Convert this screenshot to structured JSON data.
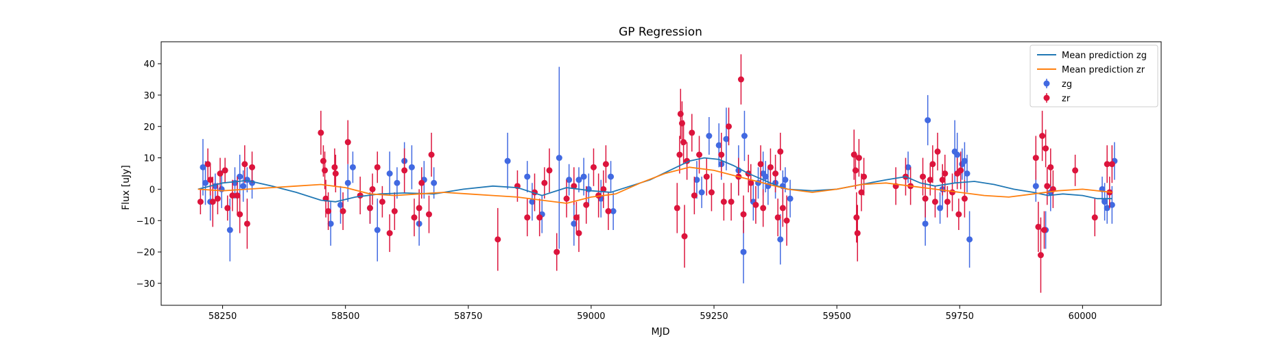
{
  "chart_data": {
    "type": "scatter",
    "title": "GP Regression",
    "xlabel": "MJD",
    "ylabel": "Flux [uJy]",
    "xlim": [
      58125,
      60160
    ],
    "ylim": [
      -37,
      47
    ],
    "x_ticks": [
      58250,
      58500,
      58750,
      59000,
      59250,
      59500,
      59750,
      60000
    ],
    "y_ticks": [
      -30,
      -20,
      -10,
      0,
      10,
      20,
      30,
      40
    ],
    "grid": false,
    "legend_position": "top-right",
    "series": [
      {
        "name": "Mean prediction zg",
        "kind": "line",
        "color": "#1f77b4",
        "x": [
          58200,
          58250,
          58300,
          58350,
          58400,
          58450,
          58480,
          58520,
          58570,
          58620,
          58680,
          58740,
          58800,
          58850,
          58900,
          58950,
          59000,
          59040,
          59080,
          59120,
          59160,
          59200,
          59230,
          59260,
          59290,
          59320,
          59350,
          59380,
          59400,
          59450,
          59500,
          59550,
          59600,
          59640,
          59670,
          59700,
          59740,
          59780,
          59820,
          59860,
          59900,
          59930,
          59960,
          60000,
          60030,
          60060
        ],
        "y": [
          0,
          2,
          2.8,
          1,
          -1,
          -3.5,
          -4,
          -2.5,
          -1.5,
          -1.2,
          -1.5,
          0,
          1,
          0.5,
          -2,
          0.5,
          -0.5,
          -1,
          1,
          3,
          6,
          9,
          10,
          9.5,
          7.5,
          5,
          3,
          1,
          0,
          -0.5,
          0,
          1.5,
          3,
          4,
          2,
          1,
          2,
          2.5,
          1.5,
          0,
          -1,
          -2,
          -1.5,
          -2,
          -3,
          -3
        ]
      },
      {
        "name": "Mean prediction zr",
        "kind": "line",
        "color": "#ff7f0e",
        "x": [
          58200,
          58250,
          58300,
          58350,
          58400,
          58450,
          58500,
          58550,
          58600,
          58650,
          58700,
          58750,
          58800,
          58850,
          58900,
          58950,
          59000,
          59050,
          59100,
          59150,
          59200,
          59250,
          59300,
          59350,
          59400,
          59450,
          59500,
          59550,
          59600,
          59650,
          59700,
          59750,
          59800,
          59850,
          59900,
          59950,
          60000,
          60060
        ],
        "y": [
          0,
          -0.5,
          0,
          0.5,
          1,
          1.5,
          0.5,
          -1.5,
          -2,
          -1.5,
          -1,
          -1.5,
          -2,
          -2.5,
          -3.5,
          -4.5,
          -2.5,
          -1.5,
          2,
          5,
          7,
          6,
          4,
          2,
          0,
          -1,
          0,
          1.5,
          2,
          1,
          0,
          -1,
          -2,
          -2.5,
          -1.5,
          -0.5,
          0,
          -1
        ]
      },
      {
        "name": "zg",
        "kind": "errorbar",
        "color": "#4169e1",
        "points": [
          [
            58210,
            7,
            9
          ],
          [
            58215,
            2,
            7
          ],
          [
            58225,
            -4,
            6
          ],
          [
            58235,
            1,
            4
          ],
          [
            58248,
            0,
            6
          ],
          [
            58265,
            -13,
            10
          ],
          [
            58275,
            2,
            5
          ],
          [
            58285,
            4,
            7
          ],
          [
            58292,
            1,
            5
          ],
          [
            58300,
            3,
            4
          ],
          [
            58310,
            2,
            5
          ],
          [
            58470,
            -11,
            7
          ],
          [
            58490,
            -5,
            6
          ],
          [
            58505,
            2,
            6
          ],
          [
            58515,
            7,
            5
          ],
          [
            58550,
            -6,
            5
          ],
          [
            58565,
            -13,
            10
          ],
          [
            58590,
            5,
            7
          ],
          [
            58605,
            2,
            5
          ],
          [
            58620,
            9,
            6
          ],
          [
            58635,
            7,
            7
          ],
          [
            58650,
            -11,
            7
          ],
          [
            58660,
            3,
            6
          ],
          [
            58680,
            2,
            5
          ],
          [
            58830,
            9,
            9
          ],
          [
            58870,
            4,
            5
          ],
          [
            58880,
            -4,
            6
          ],
          [
            58900,
            -8,
            6
          ],
          [
            58935,
            10,
            29
          ],
          [
            58955,
            3,
            5
          ],
          [
            58965,
            -11,
            7
          ],
          [
            58975,
            3,
            4
          ],
          [
            58985,
            4,
            6
          ],
          [
            58995,
            0,
            5
          ],
          [
            59020,
            -3,
            6
          ],
          [
            59040,
            4,
            5
          ],
          [
            59045,
            -7,
            6
          ],
          [
            59215,
            3,
            6
          ],
          [
            59225,
            -1,
            5
          ],
          [
            59240,
            17,
            6
          ],
          [
            59260,
            14,
            7
          ],
          [
            59265,
            8,
            5
          ],
          [
            59275,
            16,
            10
          ],
          [
            59300,
            6,
            8
          ],
          [
            59310,
            -20,
            10
          ],
          [
            59312,
            17,
            8
          ],
          [
            59330,
            -4,
            6
          ],
          [
            59340,
            2,
            5
          ],
          [
            59350,
            5,
            7
          ],
          [
            59355,
            4,
            5
          ],
          [
            59360,
            1,
            6
          ],
          [
            59375,
            2,
            5
          ],
          [
            59385,
            -16,
            8
          ],
          [
            59390,
            1,
            5
          ],
          [
            59395,
            3,
            4
          ],
          [
            59405,
            -3,
            6
          ],
          [
            59645,
            7,
            5
          ],
          [
            59680,
            -11,
            7
          ],
          [
            59685,
            22,
            8
          ],
          [
            59710,
            -6,
            5
          ],
          [
            59715,
            0,
            6
          ],
          [
            59740,
            12,
            10
          ],
          [
            59745,
            11,
            7
          ],
          [
            59755,
            8,
            5
          ],
          [
            59760,
            9,
            6
          ],
          [
            59765,
            5,
            6
          ],
          [
            59770,
            -16,
            9
          ],
          [
            59905,
            1,
            5
          ],
          [
            59925,
            -13,
            6
          ],
          [
            59935,
            -1,
            6
          ],
          [
            60040,
            0,
            4
          ],
          [
            60045,
            -4,
            6
          ],
          [
            60050,
            -6,
            5
          ],
          [
            60060,
            -5,
            6
          ],
          [
            60065,
            9,
            6
          ]
        ]
      },
      {
        "name": "zr",
        "kind": "errorbar",
        "color": "#dc143c",
        "points": [
          [
            58205,
            -4,
            4
          ],
          [
            58220,
            8,
            5
          ],
          [
            58225,
            3,
            5
          ],
          [
            58230,
            -4,
            8
          ],
          [
            58240,
            -3,
            5
          ],
          [
            58245,
            5,
            5
          ],
          [
            58255,
            6,
            4
          ],
          [
            58260,
            -6,
            4
          ],
          [
            58270,
            -2,
            5
          ],
          [
            58280,
            -2,
            6
          ],
          [
            58285,
            -8,
            6
          ],
          [
            58295,
            8,
            6
          ],
          [
            58300,
            -11,
            8
          ],
          [
            58310,
            7,
            5
          ],
          [
            58450,
            18,
            7
          ],
          [
            58455,
            9,
            5
          ],
          [
            58458,
            6,
            6
          ],
          [
            58460,
            -3,
            6
          ],
          [
            58465,
            -7,
            6
          ],
          [
            58478,
            7,
            6
          ],
          [
            58480,
            5,
            6
          ],
          [
            58495,
            -7,
            6
          ],
          [
            58505,
            15,
            7
          ],
          [
            58530,
            -2,
            6
          ],
          [
            58550,
            -6,
            5
          ],
          [
            58555,
            0,
            5
          ],
          [
            58565,
            7,
            5
          ],
          [
            58575,
            -4,
            5
          ],
          [
            58590,
            -14,
            6
          ],
          [
            58600,
            -7,
            6
          ],
          [
            58620,
            6,
            7
          ],
          [
            58640,
            -9,
            6
          ],
          [
            58650,
            -6,
            6
          ],
          [
            58655,
            2,
            5
          ],
          [
            58670,
            -8,
            6
          ],
          [
            58675,
            11,
            7
          ],
          [
            58810,
            -16,
            10
          ],
          [
            58850,
            1,
            5
          ],
          [
            58870,
            -9,
            6
          ],
          [
            58885,
            -1,
            6
          ],
          [
            58895,
            -9,
            6
          ],
          [
            58905,
            2,
            5
          ],
          [
            58915,
            6,
            7
          ],
          [
            58930,
            -20,
            6
          ],
          [
            58950,
            -3,
            6
          ],
          [
            58965,
            1,
            6
          ],
          [
            58970,
            -9,
            5
          ],
          [
            58975,
            -14,
            6
          ],
          [
            58990,
            -5,
            6
          ],
          [
            59005,
            7,
            6
          ],
          [
            59015,
            -2,
            7
          ],
          [
            59025,
            0,
            6
          ],
          [
            59030,
            8,
            6
          ],
          [
            59035,
            -7,
            6
          ],
          [
            59175,
            -6,
            8
          ],
          [
            59180,
            11,
            6
          ],
          [
            59182,
            24,
            8
          ],
          [
            59185,
            21,
            7
          ],
          [
            59188,
            15,
            7
          ],
          [
            59190,
            -15,
            10
          ],
          [
            59195,
            9,
            6
          ],
          [
            59205,
            18,
            6
          ],
          [
            59210,
            -2,
            6
          ],
          [
            59220,
            11,
            6
          ],
          [
            59235,
            4,
            6
          ],
          [
            59245,
            -1,
            6
          ],
          [
            59265,
            11,
            7
          ],
          [
            59270,
            -4,
            6
          ],
          [
            59280,
            20,
            6
          ],
          [
            59285,
            -4,
            6
          ],
          [
            59300,
            4,
            6
          ],
          [
            59305,
            35,
            8
          ],
          [
            59310,
            -8,
            6
          ],
          [
            59320,
            5,
            6
          ],
          [
            59325,
            2,
            6
          ],
          [
            59335,
            -5,
            6
          ],
          [
            59345,
            8,
            6
          ],
          [
            59350,
            -6,
            6
          ],
          [
            59365,
            7,
            6
          ],
          [
            59375,
            5,
            6
          ],
          [
            59380,
            -9,
            6
          ],
          [
            59385,
            12,
            6
          ],
          [
            59390,
            -6,
            6
          ],
          [
            59398,
            -10,
            8
          ],
          [
            59535,
            11,
            8
          ],
          [
            59538,
            6,
            6
          ],
          [
            59540,
            -9,
            8
          ],
          [
            59542,
            -14,
            9
          ],
          [
            59545,
            10,
            6
          ],
          [
            59550,
            -1,
            6
          ],
          [
            59555,
            4,
            6
          ],
          [
            59620,
            1,
            6
          ],
          [
            59640,
            4,
            6
          ],
          [
            59650,
            1,
            6
          ],
          [
            59675,
            4,
            6
          ],
          [
            59680,
            -3,
            6
          ],
          [
            59690,
            3,
            5
          ],
          [
            59695,
            8,
            6
          ],
          [
            59700,
            -4,
            5
          ],
          [
            59705,
            12,
            6
          ],
          [
            59715,
            3,
            5
          ],
          [
            59720,
            5,
            6
          ],
          [
            59725,
            -4,
            5
          ],
          [
            59735,
            -1,
            6
          ],
          [
            59745,
            5,
            5
          ],
          [
            59748,
            -8,
            5
          ],
          [
            59752,
            6,
            6
          ],
          [
            59760,
            -3,
            6
          ],
          [
            59905,
            10,
            7
          ],
          [
            59910,
            -12,
            8
          ],
          [
            59915,
            -21,
            12
          ],
          [
            59918,
            17,
            8
          ],
          [
            59922,
            -13,
            6
          ],
          [
            59925,
            13,
            6
          ],
          [
            59928,
            1,
            6
          ],
          [
            59935,
            7,
            6
          ],
          [
            59940,
            0,
            6
          ],
          [
            59985,
            6,
            5
          ],
          [
            60025,
            -9,
            6
          ],
          [
            60050,
            8,
            6
          ],
          [
            60055,
            -1,
            5
          ],
          [
            60060,
            8,
            6
          ]
        ]
      }
    ]
  }
}
